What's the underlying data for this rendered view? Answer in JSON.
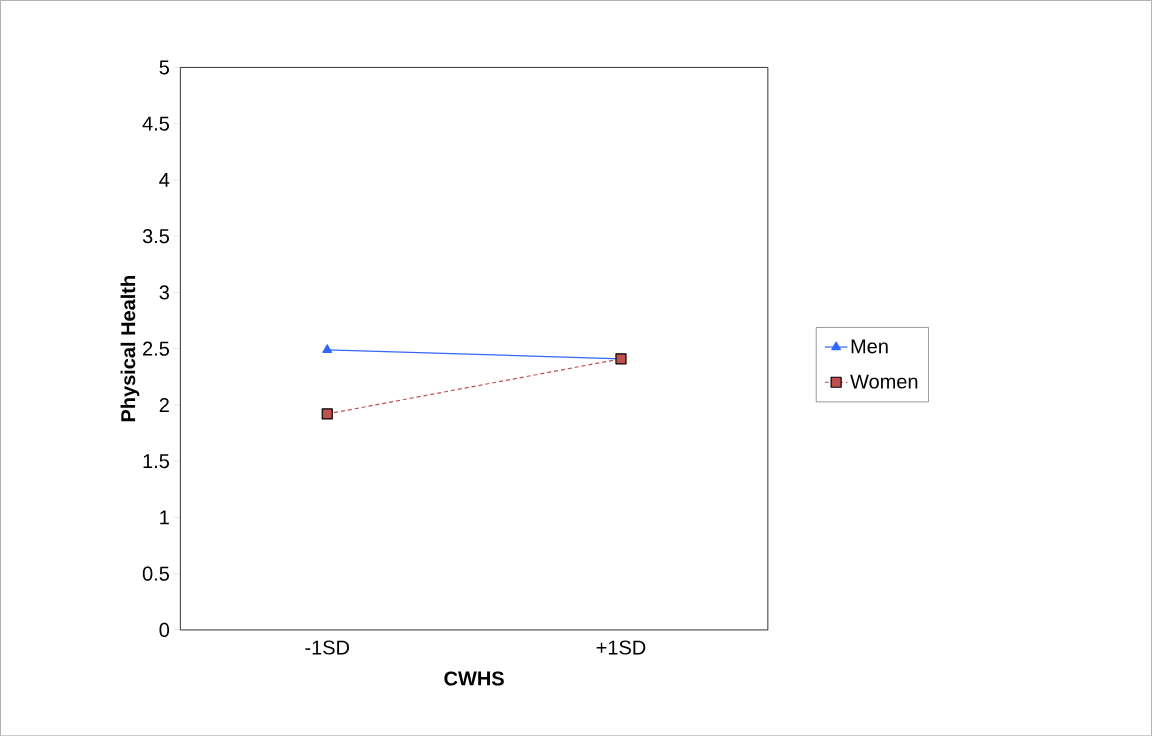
{
  "chart_data": {
    "type": "line",
    "xlabel": "CWHS",
    "ylabel": "Physical Health",
    "categories": [
      "-1SD",
      "+1SD"
    ],
    "series": [
      {
        "name": "Men",
        "color": "#3366ff",
        "values": [
          2.49,
          2.41
        ],
        "marker": "triangle",
        "line_style": "solid"
      },
      {
        "name": "Women",
        "color": "#c0504d",
        "values": [
          1.92,
          2.41
        ],
        "marker": "square",
        "line_style": "dashed"
      }
    ],
    "ylim": [
      0,
      5
    ],
    "yticks": [
      0,
      0.5,
      1,
      1.5,
      2,
      2.5,
      3,
      3.5,
      4,
      4.5,
      5
    ],
    "grid": false,
    "legend": "right"
  }
}
